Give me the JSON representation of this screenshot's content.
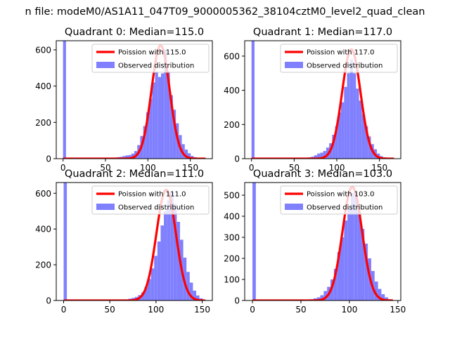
{
  "figure": {
    "suptitle": "n file: modeM0/AS1A11_047T09_9000005362_38104cztM0_level2_quad_clean"
  },
  "colors": {
    "fit_line": "#ff0000",
    "histogram": "#8080ff"
  },
  "chart_data": [
    {
      "type": "bar",
      "title": "Quadrant 0: Median=115.0",
      "median": 115.0,
      "xlim": [
        -8,
        176
      ],
      "ylim": [
        0,
        650
      ],
      "xticks": [
        0,
        50,
        100,
        150
      ],
      "yticks": [
        0,
        200,
        400,
        600
      ],
      "bin_width": 3.5,
      "bars": [
        {
          "x": 0,
          "y": 700
        },
        {
          "x": 63,
          "y": 8
        },
        {
          "x": 66.5,
          "y": 10
        },
        {
          "x": 70,
          "y": 14
        },
        {
          "x": 73.5,
          "y": 18
        },
        {
          "x": 77,
          "y": 20
        },
        {
          "x": 80.5,
          "y": 28
        },
        {
          "x": 84,
          "y": 42
        },
        {
          "x": 87.5,
          "y": 75
        },
        {
          "x": 91,
          "y": 125
        },
        {
          "x": 94.5,
          "y": 180
        },
        {
          "x": 98,
          "y": 255
        },
        {
          "x": 101.5,
          "y": 330
        },
        {
          "x": 105,
          "y": 420
        },
        {
          "x": 108.5,
          "y": 480
        },
        {
          "x": 112,
          "y": 450
        },
        {
          "x": 115.5,
          "y": 470
        },
        {
          "x": 119,
          "y": 600
        },
        {
          "x": 122.5,
          "y": 480
        },
        {
          "x": 126,
          "y": 350
        },
        {
          "x": 129.5,
          "y": 270
        },
        {
          "x": 133,
          "y": 195
        },
        {
          "x": 136.5,
          "y": 130
        },
        {
          "x": 140,
          "y": 80
        },
        {
          "x": 143.5,
          "y": 50
        },
        {
          "x": 147,
          "y": 30
        },
        {
          "x": 150.5,
          "y": 15
        },
        {
          "x": 154,
          "y": 8
        },
        {
          "x": 157.5,
          "y": 4
        }
      ],
      "fit": {
        "mean": 115.0,
        "peak": 625
      },
      "legend": {
        "location": "upper right",
        "entries": [
          "Poission with 115.0",
          "Observed distribution"
        ]
      }
    },
    {
      "type": "bar",
      "title": "Quadrant 1: Median=117.0",
      "median": 117.0,
      "xlim": [
        -8,
        175
      ],
      "ylim": [
        0,
        690
      ],
      "xticks": [
        0,
        50,
        100,
        150
      ],
      "yticks": [
        0,
        200,
        400,
        600
      ],
      "bin_width": 3.5,
      "bars": [
        {
          "x": 0,
          "y": 720
        },
        {
          "x": 66.5,
          "y": 8
        },
        {
          "x": 70,
          "y": 12
        },
        {
          "x": 73.5,
          "y": 20
        },
        {
          "x": 77,
          "y": 30
        },
        {
          "x": 80.5,
          "y": 35
        },
        {
          "x": 84,
          "y": 45
        },
        {
          "x": 87.5,
          "y": 65
        },
        {
          "x": 91,
          "y": 90
        },
        {
          "x": 94.5,
          "y": 140
        },
        {
          "x": 98,
          "y": 190
        },
        {
          "x": 101.5,
          "y": 270
        },
        {
          "x": 105,
          "y": 330
        },
        {
          "x": 108.5,
          "y": 420
        },
        {
          "x": 112,
          "y": 500
        },
        {
          "x": 115.5,
          "y": 580
        },
        {
          "x": 119,
          "y": 500
        },
        {
          "x": 122.5,
          "y": 410
        },
        {
          "x": 126,
          "y": 340
        },
        {
          "x": 129.5,
          "y": 260
        },
        {
          "x": 133,
          "y": 190
        },
        {
          "x": 136.5,
          "y": 130
        },
        {
          "x": 140,
          "y": 85
        },
        {
          "x": 143.5,
          "y": 55
        },
        {
          "x": 147,
          "y": 30
        },
        {
          "x": 150.5,
          "y": 15
        },
        {
          "x": 154,
          "y": 8
        },
        {
          "x": 157.5,
          "y": 4
        }
      ],
      "fit": {
        "mean": 117.0,
        "peak": 640
      },
      "legend": {
        "location": "upper right",
        "entries": [
          "Poission with 117.0",
          "Observed distribution"
        ]
      }
    },
    {
      "type": "bar",
      "title": "Quadrant 2: Median=111.0",
      "median": 111.0,
      "xlim": [
        -8,
        161
      ],
      "ylim": [
        0,
        660
      ],
      "xticks": [
        0,
        50,
        100,
        150
      ],
      "yticks": [
        0,
        200,
        400,
        600
      ],
      "bin_width": 3.5,
      "bars": [
        {
          "x": 0,
          "y": 700
        },
        {
          "x": 66.5,
          "y": 6
        },
        {
          "x": 70,
          "y": 10
        },
        {
          "x": 73.5,
          "y": 14
        },
        {
          "x": 77,
          "y": 20
        },
        {
          "x": 80.5,
          "y": 30
        },
        {
          "x": 84,
          "y": 45
        },
        {
          "x": 87.5,
          "y": 75
        },
        {
          "x": 91,
          "y": 120
        },
        {
          "x": 94.5,
          "y": 180
        },
        {
          "x": 98,
          "y": 250
        },
        {
          "x": 101.5,
          "y": 330
        },
        {
          "x": 105,
          "y": 420
        },
        {
          "x": 108.5,
          "y": 500
        },
        {
          "x": 112,
          "y": 560
        },
        {
          "x": 115.5,
          "y": 610
        },
        {
          "x": 119,
          "y": 540
        },
        {
          "x": 122.5,
          "y": 440
        },
        {
          "x": 126,
          "y": 340
        },
        {
          "x": 129.5,
          "y": 240
        },
        {
          "x": 133,
          "y": 160
        },
        {
          "x": 136.5,
          "y": 100
        },
        {
          "x": 140,
          "y": 55
        },
        {
          "x": 143.5,
          "y": 28
        },
        {
          "x": 147,
          "y": 12
        },
        {
          "x": 150.5,
          "y": 5
        }
      ],
      "fit": {
        "mean": 111.0,
        "peak": 620
      },
      "legend": {
        "location": "upper right",
        "entries": [
          "Poission with 111.0",
          "Observed distribution"
        ]
      }
    },
    {
      "type": "bar",
      "title": "Quadrant 3: Median=103.0",
      "median": 103.0,
      "xlim": [
        -8,
        153
      ],
      "ylim": [
        0,
        560
      ],
      "xticks": [
        0,
        50,
        100,
        150
      ],
      "yticks": [
        0,
        100,
        200,
        300,
        400,
        500
      ],
      "bin_width": 3.5,
      "bars": [
        {
          "x": 0,
          "y": 600
        },
        {
          "x": 59.5,
          "y": 6
        },
        {
          "x": 63,
          "y": 10
        },
        {
          "x": 66.5,
          "y": 15
        },
        {
          "x": 70,
          "y": 25
        },
        {
          "x": 73.5,
          "y": 45
        },
        {
          "x": 77,
          "y": 65
        },
        {
          "x": 80.5,
          "y": 100
        },
        {
          "x": 84,
          "y": 150
        },
        {
          "x": 87.5,
          "y": 230
        },
        {
          "x": 91,
          "y": 300
        },
        {
          "x": 94.5,
          "y": 380
        },
        {
          "x": 98,
          "y": 440
        },
        {
          "x": 101.5,
          "y": 510
        },
        {
          "x": 105,
          "y": 490
        },
        {
          "x": 108.5,
          "y": 420
        },
        {
          "x": 112,
          "y": 340
        },
        {
          "x": 115.5,
          "y": 270
        },
        {
          "x": 119,
          "y": 200
        },
        {
          "x": 122.5,
          "y": 140
        },
        {
          "x": 126,
          "y": 90
        },
        {
          "x": 129.5,
          "y": 55
        },
        {
          "x": 133,
          "y": 30
        },
        {
          "x": 136.5,
          "y": 15
        },
        {
          "x": 140,
          "y": 6
        }
      ],
      "fit": {
        "mean": 103.0,
        "peak": 540
      },
      "legend": {
        "location": "upper right",
        "entries": [
          "Poission with 103.0",
          "Observed distribution"
        ]
      }
    }
  ]
}
